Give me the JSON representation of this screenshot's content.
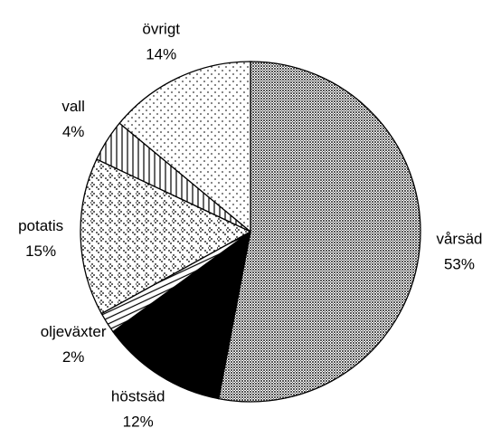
{
  "chart_data": {
    "type": "pie",
    "categories": [
      "vårsäd",
      "höstsäd",
      "oljeväxter",
      "potatis",
      "vall",
      "övrigt"
    ],
    "values": [
      53,
      12,
      2,
      15,
      4,
      14
    ],
    "value_labels": [
      "53%",
      "12%",
      "2%",
      "15%",
      "4%",
      "14%"
    ],
    "patterns": [
      "dense",
      "solid",
      "hlines",
      "diamonds",
      "vlines",
      "dots"
    ]
  }
}
